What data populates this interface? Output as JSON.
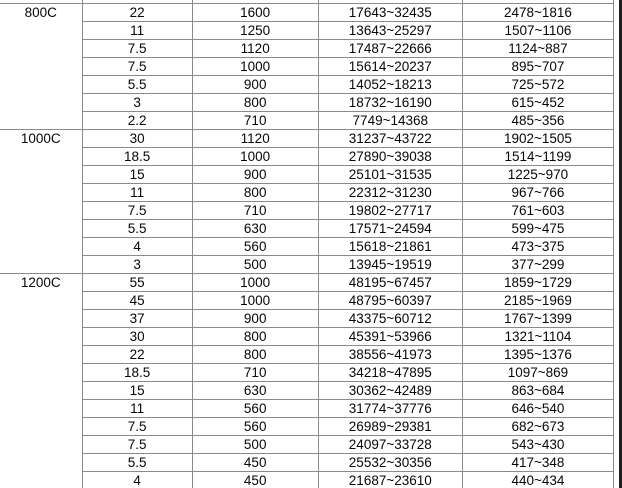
{
  "colors": {
    "grid_border": "#8a8a8a",
    "text": "#06060e",
    "background": "#ffffff",
    "right_edge": "#1f1f1f"
  },
  "table": {
    "tilde": "~",
    "sections": [
      {
        "model": "800C",
        "rows": [
          [
            "22",
            "1600",
            "17643~32435",
            "2478~1816"
          ],
          [
            "11",
            "1250",
            "13643~25297",
            "1507~1106"
          ],
          [
            "7.5",
            "1120",
            "17487~22666",
            "1124~887"
          ],
          [
            "7.5",
            "1000",
            "15614~20237",
            "895~707"
          ],
          [
            "5.5",
            "900",
            "14052~18213",
            "725~572"
          ],
          [
            "3",
            "800",
            "18732~16190",
            "615~452"
          ],
          [
            "2.2",
            "710",
            "7749~14368",
            "485~356"
          ]
        ]
      },
      {
        "model": "1000C",
        "rows": [
          [
            "30",
            "1120",
            "31237~43722",
            "1902~1505"
          ],
          [
            "18.5",
            "1000",
            "27890~39038",
            "1514~1199"
          ],
          [
            "15",
            "900",
            "25101~31535",
            "1225~970"
          ],
          [
            "11",
            "800",
            "22312~31230",
            "967~766"
          ],
          [
            "7.5",
            "710",
            "19802~27717",
            "761~603"
          ],
          [
            "5.5",
            "630",
            "17571~24594",
            "599~475"
          ],
          [
            "4",
            "560",
            "15618~21861",
            "473~375"
          ],
          [
            "3",
            "500",
            "13945~19519",
            "377~299"
          ]
        ]
      },
      {
        "model": "1200C",
        "rows": [
          [
            "55",
            "1000",
            "48195~67457",
            "1859~1729"
          ],
          [
            "45",
            "1000",
            "48795~60397",
            "2185~1969"
          ],
          [
            "37",
            "900",
            "43375~60712",
            "1767~1399"
          ],
          [
            "30",
            "800",
            "45391~53966",
            "1321~1104"
          ],
          [
            "22",
            "800",
            "38556~41973",
            "1395~1376"
          ],
          [
            "18.5",
            "710",
            "34218~47895",
            "1097~869"
          ],
          [
            "15",
            "630",
            "30362~42489",
            "863~684"
          ],
          [
            "11",
            "560",
            "31774~37776",
            "646~540"
          ],
          [
            "7.5",
            "560",
            "26989~29381",
            "682~673"
          ],
          [
            "7.5",
            "500",
            "24097~33728",
            "543~430"
          ],
          [
            "5.5",
            "450",
            "25532~30356",
            "417~348"
          ],
          [
            "4",
            "450",
            "21687~23610",
            "440~434"
          ]
        ]
      }
    ]
  }
}
